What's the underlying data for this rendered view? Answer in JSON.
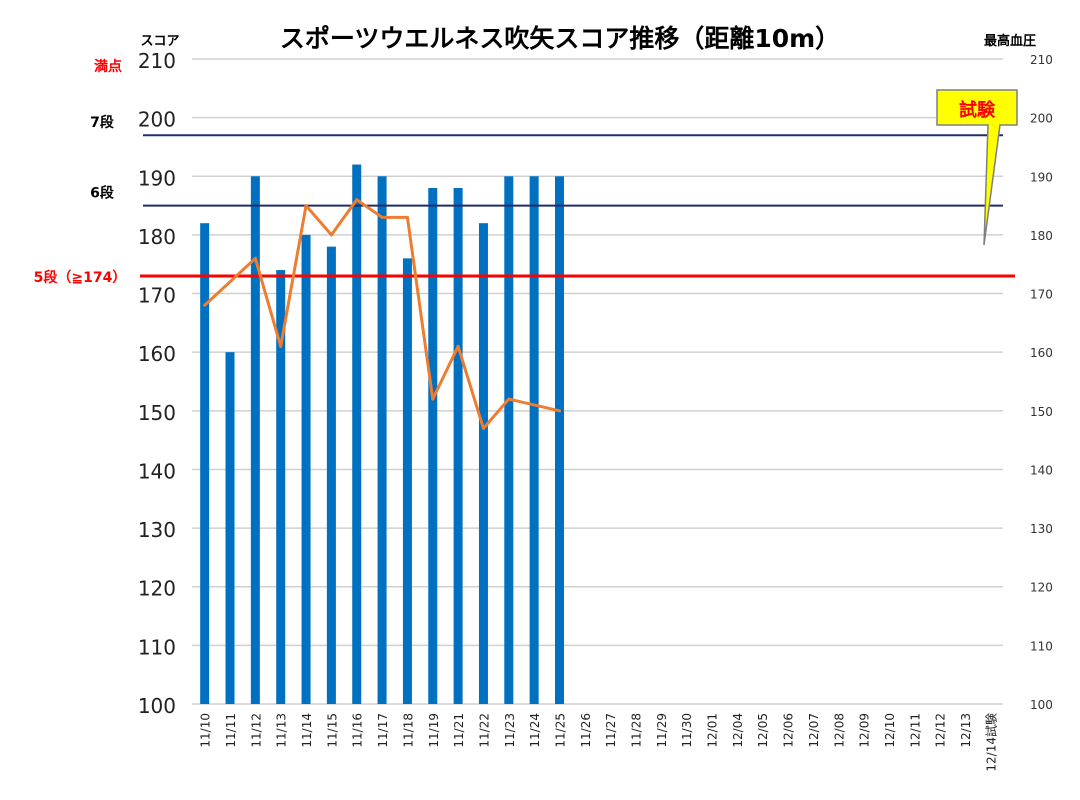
{
  "chart_data": {
    "type": "bar",
    "title": "スポーツウエルネス吹矢スコア推移（距離10m）",
    "ylabel_left": "スコア",
    "ylabel_right": "最高血圧",
    "ylim": [
      100,
      210
    ],
    "y2lim": [
      100,
      210
    ],
    "left_ticks": [
      "100",
      "110",
      "120",
      "130",
      "140",
      "150",
      "160",
      "170",
      "180",
      "190",
      "200",
      "210"
    ],
    "right_ticks": [
      "100",
      "110",
      "120",
      "130",
      "140",
      "150",
      "160",
      "170",
      "180",
      "190",
      "200",
      "210"
    ],
    "grid": true,
    "categories": [
      "11/10",
      "11/11",
      "11/12",
      "11/13",
      "11/14",
      "11/15",
      "11/16",
      "11/17",
      "11/18",
      "11/19",
      "11/21",
      "11/22",
      "11/23",
      "11/24",
      "11/25",
      "11/26",
      "11/27",
      "11/28",
      "11/29",
      "11/30",
      "12/01",
      "12/04",
      "12/05",
      "12/06",
      "12/07",
      "12/08",
      "12/09",
      "12/10",
      "12/11",
      "12/12",
      "12/13",
      "12/14試験"
    ],
    "series": [
      {
        "name": "スコア",
        "type": "bar",
        "axis": "left",
        "color": "#0070C0",
        "values": [
          182,
          160,
          190,
          174,
          180,
          178,
          192,
          190,
          176,
          188,
          188,
          182,
          190,
          190,
          190,
          null,
          null,
          null,
          null,
          null,
          null,
          null,
          null,
          null,
          null,
          null,
          null,
          null,
          null,
          null,
          null,
          null
        ]
      },
      {
        "name": "最高血圧",
        "type": "line",
        "axis": "right",
        "color": "#ED7D31",
        "values": [
          168,
          172,
          176,
          161,
          185,
          180,
          186,
          183,
          183,
          152,
          161,
          147,
          152,
          151,
          150,
          null,
          null,
          null,
          null,
          null,
          null,
          null,
          null,
          null,
          null,
          null,
          null,
          null,
          null,
          null,
          null,
          null
        ]
      }
    ],
    "reference_lines": [
      {
        "label": "7段",
        "value": 197,
        "color": "#1F2D6B"
      },
      {
        "label": "6段",
        "value": 185,
        "color": "#1F2D6B"
      },
      {
        "label": "5段（≧174）",
        "value": 173,
        "color": "#FF0000"
      }
    ],
    "full_score_label": "満点",
    "annotation": {
      "text": "試験",
      "fill": "#FFFF00",
      "text_color": "#FF0000"
    },
    "colors": {
      "bar": "#0070C0",
      "line": "#ED7D31",
      "grid": "#D0D0D0",
      "rank_line": "#1F2D6B",
      "pass_line": "#FF0000"
    }
  }
}
